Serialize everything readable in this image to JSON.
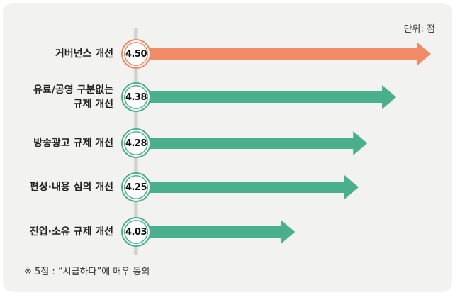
{
  "chart_data": {
    "type": "bar",
    "orientation": "horizontal",
    "unit_label": "단위: 점",
    "footnote": "※ 5점 : “시급하다”에 매우 동의",
    "categories": [
      [
        "거버넌스 개선"
      ],
      [
        "유료/공영 구분없는",
        "규제 개선"
      ],
      [
        "방송광고 규제 개선"
      ],
      [
        "편성·내용 심의 개선"
      ],
      [
        "진입·소유 규제 개선"
      ]
    ],
    "values": [
      4.5,
      4.38,
      4.28,
      4.25,
      4.03
    ],
    "value_labels": [
      "4.50",
      "4.38",
      "4.28",
      "4.25",
      "4.03"
    ],
    "colors": [
      "#f08a67",
      "#4aaf8c",
      "#4aaf8c",
      "#4aaf8c",
      "#4aaf8c"
    ]
  }
}
